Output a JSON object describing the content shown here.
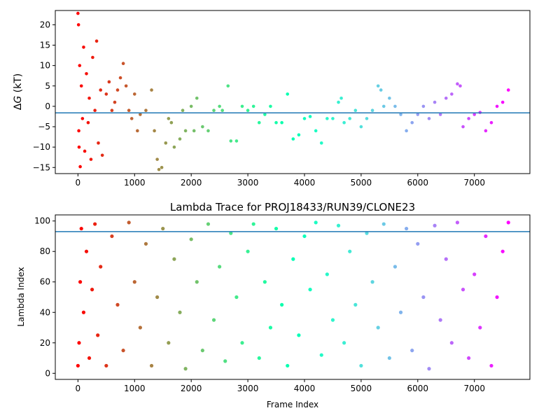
{
  "chart_data": [
    {
      "type": "scatter",
      "title": "",
      "xlabel": "",
      "ylabel": "ΔG (kT)",
      "ylabel_symbol": "Δ",
      "ylabel_var": "G",
      "ylabel_unit": " (kT)",
      "xlim": [
        -400,
        7980
      ],
      "ylim": [
        -16.5,
        23.5
      ],
      "xticks": [
        0,
        1000,
        2000,
        3000,
        4000,
        5000,
        6000,
        7000
      ],
      "yticks": [
        -15,
        -10,
        -5,
        0,
        5,
        10,
        15,
        20
      ],
      "hline": {
        "y": -1.6,
        "color": "#1f77b4"
      },
      "grid": false,
      "colormap": "rainbow (color encodes frame index: red at 0 → violet at end)",
      "series": [
        {
          "points_sampled": [
            [
              0,
              22.8
            ],
            [
              10,
              20
            ],
            [
              15,
              -6
            ],
            [
              20,
              -10
            ],
            [
              30,
              10
            ],
            [
              40,
              -14.8
            ],
            [
              60,
              5
            ],
            [
              80,
              -3
            ],
            [
              100,
              14.5
            ],
            [
              120,
              -11
            ],
            [
              150,
              8
            ],
            [
              180,
              -4
            ],
            [
              200,
              2
            ],
            [
              230,
              -13
            ],
            [
              260,
              12
            ],
            [
              300,
              -1
            ],
            [
              330,
              16
            ],
            [
              360,
              -9
            ],
            [
              400,
              4
            ],
            [
              430,
              -12
            ],
            [
              500,
              3
            ],
            [
              550,
              6
            ],
            [
              600,
              -1
            ],
            [
              650,
              1
            ],
            [
              700,
              4
            ],
            [
              750,
              7
            ],
            [
              800,
              10.5
            ],
            [
              850,
              5
            ],
            [
              900,
              -1
            ],
            [
              950,
              -3
            ],
            [
              1000,
              3
            ],
            [
              1050,
              -6
            ],
            [
              1100,
              -2
            ],
            [
              1200,
              -1
            ],
            [
              1300,
              4
            ],
            [
              1350,
              -6
            ],
            [
              1400,
              -13
            ],
            [
              1430,
              -15.5
            ],
            [
              1480,
              -15
            ],
            [
              1550,
              -9
            ],
            [
              1600,
              -3
            ],
            [
              1650,
              -4
            ],
            [
              1700,
              -10
            ],
            [
              1800,
              -8
            ],
            [
              1850,
              -1
            ],
            [
              1900,
              -6
            ],
            [
              2000,
              0
            ],
            [
              2050,
              -6
            ],
            [
              2100,
              2
            ],
            [
              2200,
              -5
            ],
            [
              2300,
              -6
            ],
            [
              2400,
              -1
            ],
            [
              2500,
              0
            ],
            [
              2550,
              -1
            ],
            [
              2650,
              5
            ],
            [
              2700,
              -8.5
            ],
            [
              2800,
              -8.5
            ],
            [
              2900,
              0
            ],
            [
              3000,
              -1
            ],
            [
              3100,
              0
            ],
            [
              3200,
              -4
            ],
            [
              3300,
              -2
            ],
            [
              3400,
              0
            ],
            [
              3500,
              -4
            ],
            [
              3600,
              -4
            ],
            [
              3700,
              3
            ],
            [
              3800,
              -8
            ],
            [
              3900,
              -7
            ],
            [
              4000,
              -3
            ],
            [
              4100,
              -2.5
            ],
            [
              4200,
              -6
            ],
            [
              4300,
              -9
            ],
            [
              4400,
              -3
            ],
            [
              4500,
              -3
            ],
            [
              4600,
              1
            ],
            [
              4650,
              2
            ],
            [
              4700,
              -4
            ],
            [
              4800,
              -3
            ],
            [
              4900,
              -1
            ],
            [
              5000,
              -5
            ],
            [
              5100,
              -3
            ],
            [
              5200,
              -1
            ],
            [
              5300,
              5
            ],
            [
              5350,
              4
            ],
            [
              5400,
              0
            ],
            [
              5500,
              2
            ],
            [
              5600,
              0
            ],
            [
              5700,
              -2
            ],
            [
              5800,
              -6
            ],
            [
              5900,
              -4
            ],
            [
              6000,
              -2
            ],
            [
              6100,
              0
            ],
            [
              6200,
              -3
            ],
            [
              6300,
              1
            ],
            [
              6400,
              -2
            ],
            [
              6500,
              2
            ],
            [
              6600,
              3
            ],
            [
              6700,
              5.5
            ],
            [
              6750,
              5
            ],
            [
              6800,
              -5
            ],
            [
              6900,
              -3
            ],
            [
              7000,
              -2
            ],
            [
              7100,
              -1.5
            ],
            [
              7200,
              -6
            ],
            [
              7300,
              -4
            ],
            [
              7400,
              0
            ],
            [
              7500,
              1
            ],
            [
              7600,
              4
            ]
          ]
        }
      ]
    },
    {
      "type": "scatter",
      "title": "Lambda Trace for PROJ18433/RUN39/CLONE23",
      "xlabel": "Frame Index",
      "ylabel": "Lambda Index",
      "xlim": [
        -400,
        7980
      ],
      "ylim": [
        -4,
        104
      ],
      "xticks": [
        0,
        1000,
        2000,
        3000,
        4000,
        5000,
        6000,
        7000
      ],
      "yticks": [
        0,
        20,
        40,
        60,
        80,
        100
      ],
      "hline": {
        "y": 93,
        "color": "#1f77b4"
      },
      "grid": false,
      "colormap": "rainbow (color encodes frame index: red at 0 → violet at end)",
      "series": [
        {
          "x_range": [
            0,
            7600
          ],
          "y_range": [
            0,
            99
          ],
          "points_sampled": [
            [
              0,
              5
            ],
            [
              20,
              20
            ],
            [
              40,
              60
            ],
            [
              60,
              95
            ],
            [
              100,
              40
            ],
            [
              150,
              80
            ],
            [
              200,
              10
            ],
            [
              250,
              55
            ],
            [
              300,
              98
            ],
            [
              350,
              25
            ],
            [
              400,
              70
            ],
            [
              500,
              5
            ],
            [
              600,
              90
            ],
            [
              700,
              45
            ],
            [
              800,
              15
            ],
            [
              900,
              99
            ],
            [
              1000,
              60
            ],
            [
              1100,
              30
            ],
            [
              1200,
              85
            ],
            [
              1300,
              5
            ],
            [
              1400,
              50
            ],
            [
              1500,
              95
            ],
            [
              1600,
              20
            ],
            [
              1700,
              75
            ],
            [
              1800,
              40
            ],
            [
              1900,
              3
            ],
            [
              2000,
              88
            ],
            [
              2100,
              60
            ],
            [
              2200,
              15
            ],
            [
              2300,
              98
            ],
            [
              2400,
              35
            ],
            [
              2500,
              70
            ],
            [
              2600,
              8
            ],
            [
              2700,
              92
            ],
            [
              2800,
              50
            ],
            [
              2900,
              20
            ],
            [
              3000,
              80
            ],
            [
              3100,
              98
            ],
            [
              3200,
              10
            ],
            [
              3300,
              60
            ],
            [
              3400,
              30
            ],
            [
              3500,
              95
            ],
            [
              3600,
              45
            ],
            [
              3700,
              5
            ],
            [
              3800,
              75
            ],
            [
              3900,
              25
            ],
            [
              4000,
              90
            ],
            [
              4100,
              55
            ],
            [
              4200,
              99
            ],
            [
              4300,
              12
            ],
            [
              4400,
              65
            ],
            [
              4500,
              35
            ],
            [
              4600,
              97
            ],
            [
              4700,
              20
            ],
            [
              4800,
              80
            ],
            [
              4900,
              45
            ],
            [
              5000,
              5
            ],
            [
              5100,
              92
            ],
            [
              5200,
              60
            ],
            [
              5300,
              30
            ],
            [
              5400,
              98
            ],
            [
              5500,
              10
            ],
            [
              5600,
              70
            ],
            [
              5700,
              40
            ],
            [
              5800,
              95
            ],
            [
              5900,
              15
            ],
            [
              6000,
              85
            ],
            [
              6100,
              50
            ],
            [
              6200,
              3
            ],
            [
              6300,
              97
            ],
            [
              6400,
              35
            ],
            [
              6500,
              75
            ],
            [
              6600,
              20
            ],
            [
              6700,
              99
            ],
            [
              6800,
              55
            ],
            [
              6900,
              10
            ],
            [
              7000,
              65
            ],
            [
              7100,
              30
            ],
            [
              7200,
              90
            ],
            [
              7300,
              5
            ],
            [
              7400,
              50
            ],
            [
              7500,
              80
            ],
            [
              7600,
              99
            ]
          ]
        }
      ]
    }
  ]
}
